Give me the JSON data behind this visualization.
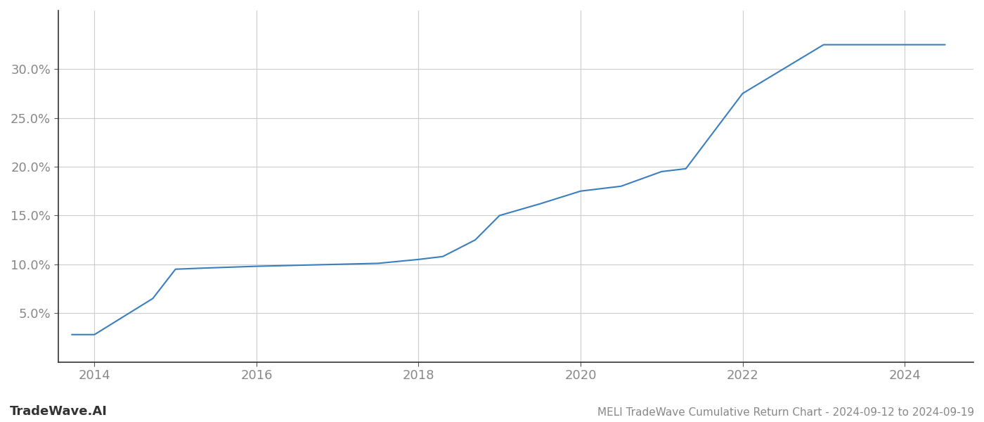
{
  "x_years": [
    2013.72,
    2014.0,
    2014.72,
    2015.0,
    2015.3,
    2016.0,
    2016.5,
    2017.0,
    2017.5,
    2018.0,
    2018.3,
    2018.7,
    2019.0,
    2019.5,
    2020.0,
    2020.5,
    2021.0,
    2021.3,
    2022.0,
    2022.5,
    2023.0,
    2023.5,
    2024.0,
    2024.5
  ],
  "y_values": [
    2.8,
    2.8,
    6.5,
    9.5,
    9.6,
    9.8,
    9.9,
    10.0,
    10.1,
    10.5,
    10.8,
    12.5,
    15.0,
    16.2,
    17.5,
    18.0,
    19.5,
    19.8,
    27.5,
    30.0,
    32.5,
    32.5,
    32.5,
    32.5
  ],
  "line_color": "#3a7ebf",
  "line_width": 1.5,
  "background_color": "#ffffff",
  "grid_color": "#cccccc",
  "title": "MELI TradeWave Cumulative Return Chart - 2024-09-12 to 2024-09-19",
  "watermark_left": "TradeWave.AI",
  "xlabel": "",
  "ylabel": "",
  "xlim": [
    2013.55,
    2024.85
  ],
  "ylim": [
    0.0,
    36.0
  ],
  "yticks": [
    5.0,
    10.0,
    15.0,
    20.0,
    25.0,
    30.0
  ],
  "xticks": [
    2014,
    2016,
    2018,
    2020,
    2022,
    2024
  ],
  "tick_label_color": "#888888",
  "tick_fontsize": 13,
  "title_fontsize": 11,
  "watermark_fontsize": 13
}
